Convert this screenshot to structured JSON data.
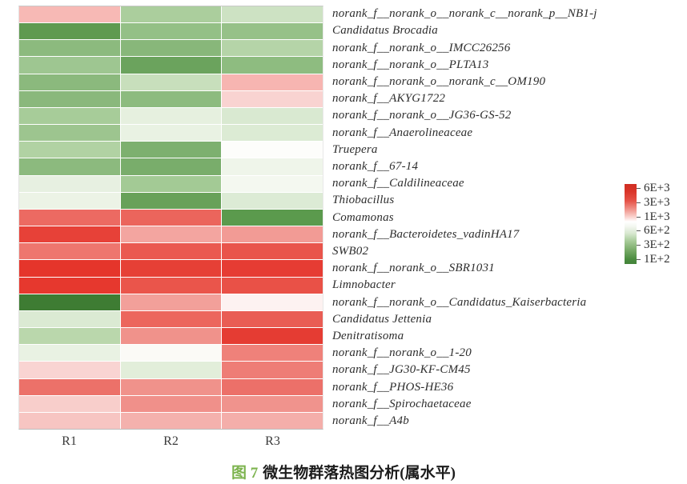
{
  "accent_colors": {
    "caption_green": "#7cb34e",
    "high_red": "#d2342a",
    "mid_white": "#ffffff",
    "low_green": "#43833a"
  },
  "chart_data": {
    "type": "heatmap",
    "title": "",
    "columns": [
      "R1",
      "R2",
      "R3"
    ],
    "rows": [
      "norank_f__norank_o__norank_c__norank_p__NB1-j",
      "Candidatus Brocadia",
      "norank_f__norank_o__IMCC26256",
      "norank_f__norank_o__PLTA13",
      "norank_f__norank_o__norank_c__OM190",
      "norank_f__AKYG1722",
      "norank_f__norank_o__JG36-GS-52",
      "norank_f__Anaerolineaceae",
      "Truepera",
      "norank_f__67-14",
      "norank_f__Caldilineaceae",
      "Thiobacillus",
      "Comamonas",
      "norank_f__Bacteroidetes_vadinHA17",
      "SWB02",
      "norank_f__norank_o__SBR1031",
      "Limnobacter",
      "norank_f__norank_o__Candidatus_Kaiserbacteria",
      "Candidatus Jettenia",
      "Denitratisoma",
      "norank_f__norank_o__1-20",
      "norank_f__JG30-KF-CM45",
      "norank_f__PHOS-HE36",
      "norank_f__Spirochaetaceae",
      "norank_f__A4b"
    ],
    "values_approx": [
      [
        1600,
        350,
        500
      ],
      [
        150,
        280,
        280
      ],
      [
        250,
        250,
        400
      ],
      [
        320,
        150,
        250
      ],
      [
        250,
        500,
        1600
      ],
      [
        250,
        250,
        1300
      ],
      [
        350,
        600,
        600
      ],
      [
        320,
        700,
        600
      ],
      [
        400,
        200,
        1000
      ],
      [
        250,
        200,
        800
      ],
      [
        700,
        320,
        850
      ],
      [
        700,
        150,
        600
      ],
      [
        3000,
        3000,
        150
      ],
      [
        4500,
        2000,
        2000
      ],
      [
        2800,
        3500,
        3500
      ],
      [
        5500,
        4500,
        4500
      ],
      [
        5500,
        3500,
        3700
      ],
      [
        100,
        2000,
        1100
      ],
      [
        600,
        3000,
        3300
      ],
      [
        420,
        2400,
        4500
      ],
      [
        700,
        1000,
        2500
      ],
      [
        1300,
        600,
        2800
      ],
      [
        2900,
        2400,
        2900
      ],
      [
        1300,
        2400,
        2400
      ],
      [
        1500,
        1600,
        1600
      ]
    ],
    "cell_colors_hex": [
      [
        "#f7b9b5",
        "#abce9d",
        "#cde2c3"
      ],
      [
        "#5f9a50",
        "#94c086",
        "#96c188"
      ],
      [
        "#8cba7e",
        "#88b77a",
        "#b5d4a8"
      ],
      [
        "#9ec691",
        "#6ba35d",
        "#8ebc80"
      ],
      [
        "#8bb97d",
        "#c8dfbc",
        "#f7b5b1"
      ],
      [
        "#8ab87c",
        "#8dbb7f",
        "#f9d3d1"
      ],
      [
        "#a7cc99",
        "#e6f0df",
        "#d9e9d1"
      ],
      [
        "#9dc58f",
        "#e9f2e3",
        "#dcebd4"
      ],
      [
        "#b1d2a3",
        "#7db06f",
        "#fdfdfb"
      ],
      [
        "#8cba7e",
        "#79ad6b",
        "#eff5ea"
      ],
      [
        "#e7f0e1",
        "#a3ca95",
        "#f4f8f0"
      ],
      [
        "#ecf3e6",
        "#68a159",
        "#dcebd5"
      ],
      [
        "#ec6a62",
        "#eb655c",
        "#5b9a4d"
      ],
      [
        "#e74138",
        "#f3a5a0",
        "#f29b95"
      ],
      [
        "#ee766e",
        "#ea5950",
        "#e9544b"
      ],
      [
        "#e5352b",
        "#e64036",
        "#e63c33"
      ],
      [
        "#e6382e",
        "#ea554b",
        "#e95147"
      ],
      [
        "#3e7c33",
        "#f2a09a",
        "#fdf2f1"
      ],
      [
        "#dbead3",
        "#ec665d",
        "#e95d54"
      ],
      [
        "#bad7ac",
        "#f0928b",
        "#e53c33"
      ],
      [
        "#e9f2e3",
        "#fbfaf6",
        "#ef817a"
      ],
      [
        "#f9d4d2",
        "#e2eeda",
        "#ee7d76"
      ],
      [
        "#ec7169",
        "#f0928b",
        "#ec7069"
      ],
      [
        "#f8cecb",
        "#f0908a",
        "#f0938d"
      ],
      [
        "#f7c5c2",
        "#f4b1ad",
        "#f4aeaa"
      ]
    ],
    "colorbar": {
      "tick_labels": [
        "6E+3",
        "3E+3",
        "1E+3",
        "6E+2",
        "3E+2",
        "1E+2"
      ],
      "high_color": "#d2342a",
      "mid_color": "#ffffff",
      "low_color": "#43833a",
      "orientation": "vertical",
      "position": "right",
      "meaning": "abundance, red = high, green = low"
    },
    "caption": {
      "prefix": "图 7",
      "text": "微生物群落热图分析(属水平)"
    },
    "grid": "off",
    "legend_position": "right"
  }
}
